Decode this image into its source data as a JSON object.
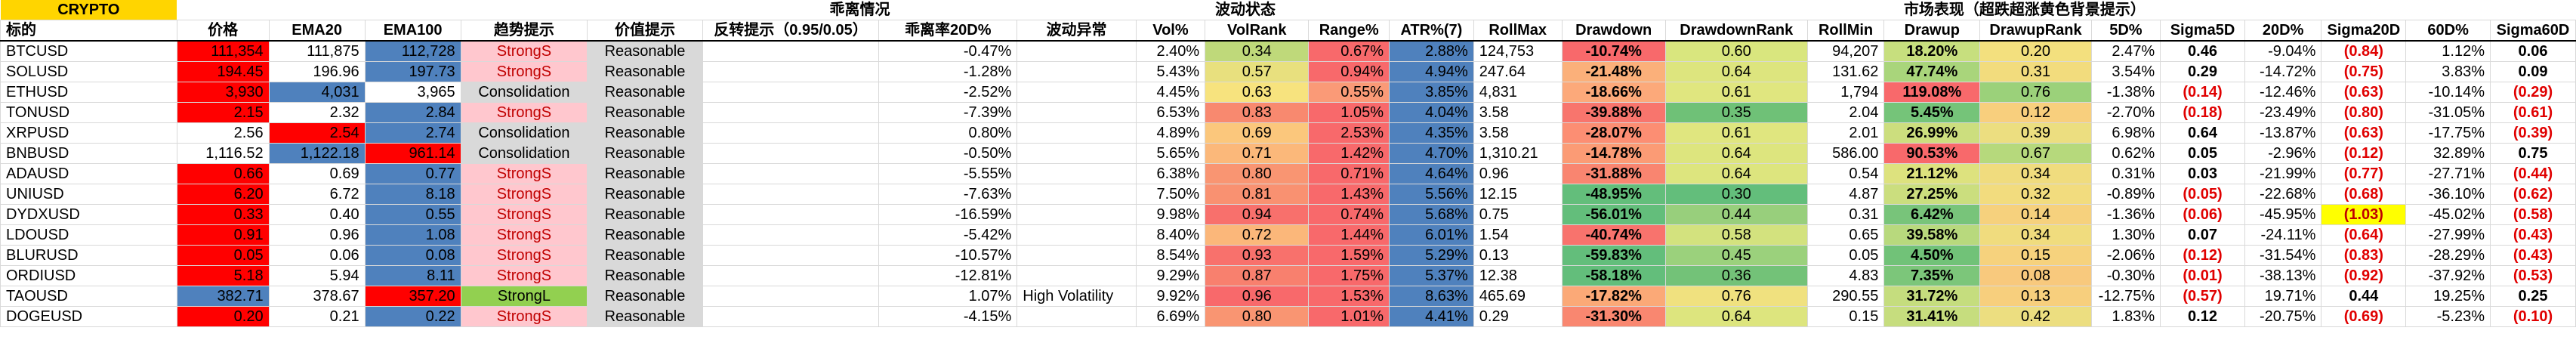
{
  "sheet": {
    "title": "CRYPTO",
    "groups": {
      "deviation": "乖离情况",
      "volatility": "波动状态",
      "market": "市场表现（超跌超涨黄色背景提示）"
    },
    "headers": [
      "标的",
      "价格",
      "EMA20",
      "EMA100",
      "趋势提示",
      "价值提示",
      "反转提示（0.95/0.05）",
      "乖离率20D%",
      "波动异常",
      "Vol%",
      "VolRank",
      "Range%",
      "ATR%(7)",
      "RollMax",
      "Drawdown",
      "DrawdownRank",
      "RollMin",
      "Drawup",
      "DrawupRank",
      "5D%",
      "Sigma5D",
      "20D%",
      "Sigma20D",
      "60D%",
      "Sigma60D"
    ],
    "colors": {
      "red_bg": "#ff0000",
      "blue_bg": "#4f81bd",
      "pink_bg": "#ffc7ce",
      "pink_text": "#c00000",
      "green_bg": "#92d050",
      "gray_bg": "#d9d9d9",
      "title_bg": "#ffd500",
      "highlight_bg": "#ffff00",
      "neg_text": "#e00000"
    },
    "rows": [
      {
        "sym": "BTCUSD",
        "price": "111,354",
        "ema20": "111,875",
        "ema100": "112,728",
        "trend": "StrongS",
        "value": "Reasonable",
        "reversal": "",
        "dev": "-0.47%",
        "anomaly": "",
        "vol": "2.40%",
        "volrank": "0.34",
        "range": "0.67%",
        "atr": "2.88%",
        "rollmax": "124,753",
        "dd": "-10.74%",
        "ddrank": "0.60",
        "rollmin": "94,207",
        "du": "18.20%",
        "durank": "0.20",
        "d5": "2.47%",
        "s5": "0.46",
        "d20": "-9.04%",
        "s20": "(0.84)",
        "d60": "1.12%",
        "s60": "0.06",
        "pc": "red",
        "e20c": "none",
        "e100c": "blue",
        "tc": "pink",
        "vrc": "#bfd97a",
        "rgc": "#f8696b",
        "ddc": "#f8696b",
        "ddrc": "#d9e67e",
        "duc": "#c7df7e",
        "durc": "#f3e07e",
        "s5red": false,
        "s20red": true,
        "s60red": false,
        "s20hi": false
      },
      {
        "sym": "SOLUSD",
        "price": "194.45",
        "ema20": "196.96",
        "ema100": "197.73",
        "trend": "StrongS",
        "value": "Reasonable",
        "reversal": "",
        "dev": "-1.28%",
        "anomaly": "",
        "vol": "5.43%",
        "volrank": "0.57",
        "range": "0.94%",
        "atr": "4.94%",
        "rollmax": "247.64",
        "dd": "-21.48%",
        "ddrank": "0.64",
        "rollmin": "131.62",
        "du": "47.74%",
        "durank": "0.31",
        "d5": "3.54%",
        "s5": "0.29",
        "d20": "-14.72%",
        "s20": "(0.75)",
        "d60": "3.83%",
        "s60": "0.09",
        "pc": "red",
        "e20c": "none",
        "e100c": "blue",
        "tc": "pink",
        "vrc": "#e8e07e",
        "rgc": "#f8696b",
        "ddc": "#fbb07a",
        "ddrc": "#dde57e",
        "duc": "#a9d57b",
        "durc": "#f2dc7d",
        "s5red": false,
        "s20red": true,
        "s60red": false,
        "s20hi": false
      },
      {
        "sym": "ETHUSD",
        "price": "3,930",
        "ema20": "4,031",
        "ema100": "3,965",
        "trend": "Consolidation",
        "value": "Reasonable",
        "reversal": "",
        "dev": "-2.52%",
        "anomaly": "",
        "vol": "4.45%",
        "volrank": "0.63",
        "range": "0.55%",
        "atr": "3.85%",
        "rollmax": "4,831",
        "dd": "-18.66%",
        "ddrank": "0.61",
        "rollmin": "1,794",
        "du": "119.08%",
        "durank": "0.76",
        "d5": "-1.38%",
        "s5": "(0.14)",
        "d20": "-12.46%",
        "s20": "(0.63)",
        "d60": "-10.14%",
        "s60": "(0.29)",
        "pc": "red",
        "e20c": "blue",
        "e100c": "none",
        "tc": "gray",
        "vrc": "#f7e37e",
        "rgc": "#fa9a77",
        "ddc": "#fca97a",
        "ddrc": "#e0e67f",
        "duc": "#f8696b",
        "durc": "#9bd17a",
        "s5red": true,
        "s20red": true,
        "s60red": true,
        "s20hi": false
      },
      {
        "sym": "TONUSD",
        "price": "2.15",
        "ema20": "2.32",
        "ema100": "2.84",
        "trend": "StrongS",
        "value": "Reasonable",
        "reversal": "",
        "dev": "-7.39%",
        "anomaly": "",
        "vol": "6.53%",
        "volrank": "0.83",
        "range": "1.05%",
        "atr": "4.04%",
        "rollmax": "3.58",
        "dd": "-39.88%",
        "ddrank": "0.35",
        "rollmin": "2.04",
        "du": "5.45%",
        "durank": "0.12",
        "d5": "-2.70%",
        "s5": "(0.18)",
        "d20": "-23.49%",
        "s20": "(0.80)",
        "d60": "-31.05%",
        "s60": "(0.61)",
        "pc": "red",
        "e20c": "none",
        "e100c": "blue",
        "tc": "pink",
        "vrc": "#f8896f",
        "rgc": "#f8696b",
        "ddc": "#f8756d",
        "ddrc": "#6fc177",
        "duc": "#75c479",
        "durc": "#f8cf7d",
        "s5red": true,
        "s20red": true,
        "s60red": true,
        "s20hi": false
      },
      {
        "sym": "XRPUSD",
        "price": "2.56",
        "ema20": "2.54",
        "ema100": "2.74",
        "trend": "Consolidation",
        "value": "Reasonable",
        "reversal": "",
        "dev": "0.80%",
        "anomaly": "",
        "vol": "4.89%",
        "volrank": "0.69",
        "range": "2.53%",
        "atr": "4.35%",
        "rollmax": "3.58",
        "dd": "-28.07%",
        "ddrank": "0.61",
        "rollmin": "2.01",
        "du": "26.99%",
        "durank": "0.39",
        "d5": "6.98%",
        "s5": "0.64",
        "d20": "-13.87%",
        "s20": "(0.63)",
        "d60": "-17.75%",
        "s60": "(0.39)",
        "pc": "none",
        "e20c": "red",
        "e100c": "blue",
        "tc": "gray",
        "vrc": "#fbc77c",
        "rgc": "#f8696b",
        "ddc": "#fc8e73",
        "ddrc": "#e0e67f",
        "duc": "#ccde7e",
        "durc": "#ecde80",
        "s5red": false,
        "s20red": true,
        "s60red": true,
        "s20hi": false
      },
      {
        "sym": "BNBUSD",
        "price": "1,116.52",
        "ema20": "1,122.18",
        "ema100": "961.14",
        "trend": "Consolidation",
        "value": "Reasonable",
        "reversal": "",
        "dev": "-0.50%",
        "anomaly": "",
        "vol": "5.65%",
        "volrank": "0.71",
        "range": "1.42%",
        "atr": "4.70%",
        "rollmax": "1,310.21",
        "dd": "-14.78%",
        "ddrank": "0.64",
        "rollmin": "586.00",
        "du": "90.53%",
        "durank": "0.67",
        "d5": "0.62%",
        "s5": "0.05",
        "d20": "-2.96%",
        "s20": "(0.12)",
        "d60": "32.89%",
        "s60": "0.75",
        "pc": "none",
        "e20c": "blue",
        "e100c": "red",
        "tc": "gray",
        "vrc": "#fbb87a",
        "rgc": "#f8696b",
        "ddc": "#fb9b75",
        "ddrc": "#dde57e",
        "duc": "#f8696b",
        "durc": "#b6d97c",
        "s5red": false,
        "s20red": true,
        "s60red": false,
        "s20hi": false
      },
      {
        "sym": "ADAUSD",
        "price": "0.66",
        "ema20": "0.69",
        "ema100": "0.77",
        "trend": "StrongS",
        "value": "Reasonable",
        "reversal": "",
        "dev": "-5.55%",
        "anomaly": "",
        "vol": "6.38%",
        "volrank": "0.80",
        "range": "0.71%",
        "atr": "4.64%",
        "rollmax": "0.96",
        "dd": "-31.88%",
        "ddrank": "0.64",
        "rollmin": "0.54",
        "du": "21.12%",
        "durank": "0.34",
        "d5": "0.31%",
        "s5": "0.03",
        "d20": "-21.99%",
        "s20": "(0.77)",
        "d60": "-27.71%",
        "s60": "(0.44)",
        "pc": "red",
        "e20c": "none",
        "e100c": "blue",
        "tc": "pink",
        "vrc": "#f99572",
        "rgc": "#f8696b",
        "ddc": "#f98570",
        "ddrc": "#dde57e",
        "duc": "#dde27e",
        "durc": "#f0dc7e",
        "s5red": false,
        "s20red": true,
        "s60red": true,
        "s20hi": false
      },
      {
        "sym": "UNIUSD",
        "price": "6.20",
        "ema20": "6.72",
        "ema100": "8.18",
        "trend": "StrongS",
        "value": "Reasonable",
        "reversal": "",
        "dev": "-7.63%",
        "anomaly": "",
        "vol": "7.50%",
        "volrank": "0.81",
        "range": "1.43%",
        "atr": "5.56%",
        "rollmax": "12.15",
        "dd": "-48.95%",
        "ddrank": "0.30",
        "rollmin": "4.87",
        "du": "27.25%",
        "durank": "0.32",
        "d5": "-0.89%",
        "s5": "(0.05)",
        "d20": "-22.68%",
        "s20": "(0.68)",
        "d60": "-36.10%",
        "s60": "(0.62)",
        "pc": "red",
        "e20c": "none",
        "e100c": "blue",
        "tc": "pink",
        "vrc": "#f99171",
        "rgc": "#f8696b",
        "ddc": "#63be7b",
        "ddrc": "#63be7b",
        "duc": "#cbde7e",
        "durc": "#f2dc7e",
        "s5red": true,
        "s20red": true,
        "s60red": true,
        "s20hi": false
      },
      {
        "sym": "DYDXUSD",
        "price": "0.33",
        "ema20": "0.40",
        "ema100": "0.55",
        "trend": "StrongS",
        "value": "Reasonable",
        "reversal": "",
        "dev": "-16.59%",
        "anomaly": "",
        "vol": "9.98%",
        "volrank": "0.94",
        "range": "0.74%",
        "atr": "5.68%",
        "rollmax": "0.75",
        "dd": "-56.01%",
        "ddrank": "0.44",
        "rollmin": "0.31",
        "du": "6.42%",
        "durank": "0.14",
        "d5": "-1.36%",
        "s5": "(0.06)",
        "d20": "-45.95%",
        "s20": "(1.03)",
        "d60": "-45.02%",
        "s60": "(0.58)",
        "pc": "red",
        "e20c": "none",
        "e100c": "blue",
        "tc": "pink",
        "vrc": "#f8706c",
        "rgc": "#f8696b",
        "ddc": "#63be7b",
        "ddrc": "#98cf7c",
        "duc": "#78c47a",
        "durc": "#f6d17d",
        "s5red": true,
        "s20red": true,
        "s60red": true,
        "s20hi": true
      },
      {
        "sym": "LDOUSD",
        "price": "0.91",
        "ema20": "0.96",
        "ema100": "1.08",
        "trend": "StrongS",
        "value": "Reasonable",
        "reversal": "",
        "dev": "-5.42%",
        "anomaly": "",
        "vol": "8.40%",
        "volrank": "0.72",
        "range": "1.44%",
        "atr": "6.01%",
        "rollmax": "1.54",
        "dd": "-40.74%",
        "ddrank": "0.58",
        "rollmin": "0.65",
        "du": "39.58%",
        "durank": "0.34",
        "d5": "1.30%",
        "s5": "0.07",
        "d20": "-24.11%",
        "s20": "(0.64)",
        "d60": "-27.99%",
        "s60": "(0.43)",
        "pc": "red",
        "e20c": "none",
        "e100c": "blue",
        "tc": "pink",
        "vrc": "#fbb77a",
        "rgc": "#f8696b",
        "ddc": "#f8736d",
        "ddrc": "#d3e27e",
        "duc": "#b8d97d",
        "durc": "#f0dc7e",
        "s5red": false,
        "s20red": true,
        "s60red": true,
        "s20hi": false
      },
      {
        "sym": "BLURUSD",
        "price": "0.05",
        "ema20": "0.06",
        "ema100": "0.08",
        "trend": "StrongS",
        "value": "Reasonable",
        "reversal": "",
        "dev": "-10.57%",
        "anomaly": "",
        "vol": "8.54%",
        "volrank": "0.93",
        "range": "1.59%",
        "atr": "5.29%",
        "rollmax": "0.13",
        "dd": "-59.83%",
        "ddrank": "0.45",
        "rollmin": "0.05",
        "du": "4.50%",
        "durank": "0.15",
        "d5": "-2.06%",
        "s5": "(0.12)",
        "d20": "-31.54%",
        "s20": "(0.83)",
        "d60": "-28.29%",
        "s60": "(0.43)",
        "pc": "red",
        "e20c": "none",
        "e100c": "blue",
        "tc": "pink",
        "vrc": "#f8716c",
        "rgc": "#f8696b",
        "ddc": "#63be7b",
        "ddrc": "#9bd17c",
        "duc": "#71c278",
        "durc": "#f6d27d",
        "s5red": true,
        "s20red": true,
        "s60red": true,
        "s20hi": false
      },
      {
        "sym": "ORDIUSD",
        "price": "5.18",
        "ema20": "5.94",
        "ema100": "8.11",
        "trend": "StrongS",
        "value": "Reasonable",
        "reversal": "",
        "dev": "-12.81%",
        "anomaly": "",
        "vol": "9.29%",
        "volrank": "0.87",
        "range": "1.75%",
        "atr": "5.37%",
        "rollmax": "12.38",
        "dd": "-58.18%",
        "ddrank": "0.36",
        "rollmin": "4.83",
        "du": "7.35%",
        "durank": "0.08",
        "d5": "-0.30%",
        "s5": "(0.01)",
        "d20": "-38.13%",
        "s20": "(0.92)",
        "d60": "-37.92%",
        "s60": "(0.53)",
        "pc": "red",
        "e20c": "none",
        "e100c": "blue",
        "tc": "pink",
        "vrc": "#f8806e",
        "rgc": "#f8696b",
        "ddc": "#63be7b",
        "ddrc": "#73c278",
        "duc": "#7cc67a",
        "durc": "#f8c97d",
        "s5red": true,
        "s20red": true,
        "s60red": true,
        "s20hi": false
      },
      {
        "sym": "TAOUSD",
        "price": "382.71",
        "ema20": "378.67",
        "ema100": "357.20",
        "trend": "StrongL",
        "value": "Reasonable",
        "reversal": "",
        "dev": "1.07%",
        "anomaly": "High Volatility",
        "vol": "9.92%",
        "volrank": "0.96",
        "range": "1.53%",
        "atr": "8.63%",
        "rollmax": "465.69",
        "dd": "-17.82%",
        "ddrank": "0.76",
        "rollmin": "290.55",
        "du": "31.72%",
        "durank": "0.13",
        "d5": "-12.75%",
        "s5": "(0.57)",
        "d20": "19.71%",
        "s20": "0.44",
        "d60": "19.25%",
        "s60": "0.25",
        "pc": "blue",
        "e20c": "none",
        "e100c": "red",
        "tc": "green",
        "vrc": "#f8696b",
        "rgc": "#f8696b",
        "ddc": "#fba977",
        "ddrc": "#f0e17f",
        "duc": "#c5dd7e",
        "durc": "#f7cf7d",
        "s5red": true,
        "s20red": false,
        "s60red": false,
        "s20hi": false
      },
      {
        "sym": "DOGEUSD",
        "price": "0.20",
        "ema20": "0.21",
        "ema100": "0.22",
        "trend": "StrongS",
        "value": "Reasonable",
        "reversal": "",
        "dev": "-4.15%",
        "anomaly": "",
        "vol": "6.69%",
        "volrank": "0.80",
        "range": "1.01%",
        "atr": "4.41%",
        "rollmax": "0.29",
        "dd": "-31.30%",
        "ddrank": "0.64",
        "rollmin": "0.15",
        "du": "31.41%",
        "durank": "0.42",
        "d5": "1.83%",
        "s5": "0.12",
        "d20": "-20.75%",
        "s20": "(0.69)",
        "d60": "-5.23%",
        "s60": "(0.10)",
        "pc": "red",
        "e20c": "none",
        "e100c": "blue",
        "tc": "pink",
        "vrc": "#f99572",
        "rgc": "#f8696b",
        "ddc": "#f98770",
        "ddrc": "#dde57e",
        "duc": "#c6dd7e",
        "durc": "#ecde80",
        "s5red": false,
        "s20red": true,
        "s60red": true,
        "s20hi": false
      }
    ]
  }
}
